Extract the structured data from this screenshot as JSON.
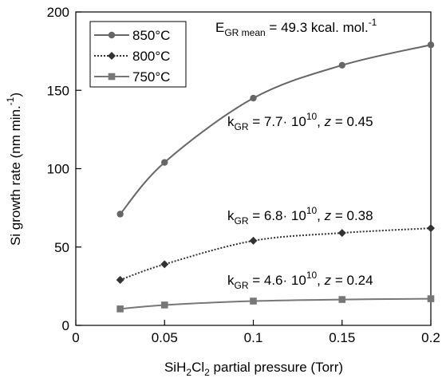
{
  "chart_data": {
    "type": "line",
    "xlabel": {
      "pre": "SiH",
      "sub1": "2",
      "mid": "Cl",
      "sub2": "2",
      "post": " partial pressure (Torr)"
    },
    "ylabel": "Si growth rate (nm min.",
    "ylabel_sup": "-1",
    "ylabel_post": ")",
    "xlim": [
      0,
      0.2
    ],
    "ylim": [
      0,
      200
    ],
    "x_ticks": [
      0,
      0.05,
      0.1,
      0.15,
      0.2
    ],
    "x_tick_labels": [
      "0",
      "0.05",
      "0.1",
      "0.15",
      "0.2"
    ],
    "y_ticks": [
      0,
      50,
      100,
      150,
      200
    ],
    "y_tick_labels": [
      "0",
      "50",
      "100",
      "150",
      "200"
    ],
    "grid": false,
    "legend_position": "top-left",
    "series": [
      {
        "name": "850°C",
        "marker": "circle",
        "dash": "solid",
        "color": "#666666",
        "x": [
          0.025,
          0.05,
          0.1,
          0.15,
          0.2
        ],
        "y": [
          71,
          104,
          145,
          166,
          179
        ],
        "annotation": {
          "k_pre": "k",
          "k_sub": "GR",
          "k_eq": " = 7.7· 10",
          "k_sup": "10",
          "z_sep": ", ",
          "z": "z",
          "z_val": " = 0.45"
        }
      },
      {
        "name": "800°C",
        "marker": "diamond",
        "dash": "dotted",
        "color": "#333333",
        "x": [
          0.025,
          0.05,
          0.1,
          0.15,
          0.2
        ],
        "y": [
          29,
          39,
          54,
          59,
          62
        ],
        "annotation": {
          "k_pre": "k",
          "k_sub": "GR",
          "k_eq": " = 6.8· 10",
          "k_sup": "10",
          "z_sep": ", ",
          "z": "z",
          "z_val": " = 0.38"
        }
      },
      {
        "name": "750°C",
        "marker": "square",
        "dash": "solid",
        "color": "#777777",
        "x": [
          0.025,
          0.05,
          0.1,
          0.15,
          0.2
        ],
        "y": [
          10.5,
          13,
          15.5,
          16.5,
          17
        ],
        "annotation": {
          "k_pre": "k",
          "k_sub": "GR",
          "k_eq": " = 4.6· 10",
          "k_sup": "10",
          "z_sep": ", ",
          "z": "z",
          "z_val": " = 0.24"
        }
      }
    ],
    "top_annotation": {
      "pre": "E",
      "sub": "GR mean",
      "eq": " = 49.3 kcal. mol.",
      "sup": "-1"
    }
  }
}
